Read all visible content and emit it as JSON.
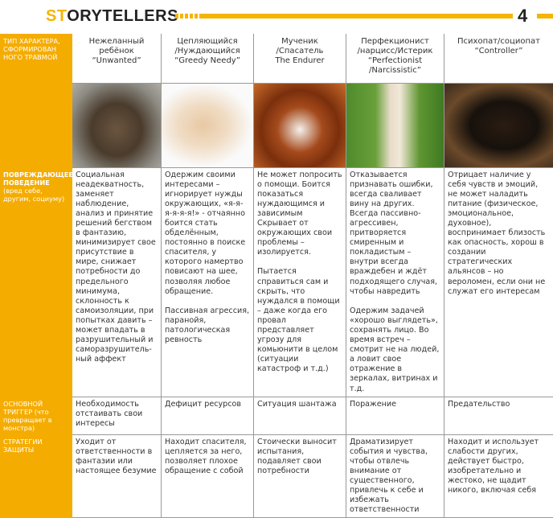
{
  "header": {
    "logo": "STORYTELLERS",
    "page_number": "4",
    "accent": "#f5b400"
  },
  "columns": [
    {
      "title": "Нежеланный\nребёнок\n“Unwanted”",
      "photo": "scruffy-mongrel-dog"
    },
    {
      "title": "Цепляющийся\n/Нуждающийся\n“Greedy Needy”",
      "photo": "chihuahua-puppy"
    },
    {
      "title": "Мученик\n/Спасатель\nThe Endurer",
      "photo": "saint-bernard-dog"
    },
    {
      "title": "Перфекционист\n/нарцисс/Истерик\n“Perfectionist\n/Narcissistic”",
      "photo": "afghan-hound"
    },
    {
      "title": "Психопат/социопат\n“Controller”",
      "photo": "rottweiler"
    }
  ],
  "rows": {
    "type_label": "ТИП ХАРАКТЕРА, СФОРМИРОВАН НОГО ТРАВМОЙ",
    "behavior": {
      "label_bold": "ПОВРЕЖДАЮЩЕЕ ПОВЕДЕНИЕ",
      "label_rest": " (вред себе, другим, социуму)",
      "cells": [
        "Социальная неадекватность, заменяет наблюдение, анализ и принятие решений бегством в фантазию, минимизирует свое присутствие в мире, снижает потребности до предельного минимума, склонность к самоизоляции, при попытках давить – может впадать в разрушительный и саморазрушитель-ный аффект",
        "Одержим своими интересами – игнорирует нужды окружающих, «я-я-я-я-я-я!» - отчаянно боится стать обделённым, постоянно в поиске спасителя, у которого намертво повисают на шее, позволяя любое обращение.\n\nПассивная агрессия, паранойя, патологическая ревность",
        "Не может попросить о помощи. Боится показаться нуждающимся и зависимым Скрывает от окружающих свои проблемы – изолируется.\n\nПытается справиться сам и скрыть, что нуждался в помощи – даже когда его провал представляет угрозу для комьюнити в целом (ситуации катастроф и т.д.)",
        "Отказывается признавать ошибки, всегда сваливает вину на других. Всегда пассивно-агрессивен, притворяется смиренным и покладистым – внутри всегда враждебен и ждёт подходящего случая, чтобы навредить\n\nОдержим задачей «хорошо выглядеть», сохранять лицо. Во время встреч – смотрит не на людей, а ловит свое отражение в зеркалах, витринах и т.д.",
        "Отрицает наличие у себя чувств и эмоций, не может наладить питание (физическое, эмоциональное, духовное), воспринимает близость как опасность, хорош в создании стратегических альянсов – но вероломен, если они не служат его интересам"
      ]
    },
    "trigger": {
      "label_bold": "ОСНОВНОЙ ТРИГГЕР",
      "label_rest": " (что превращает в монстра)",
      "cells": [
        "Необходимость отстаивать свои интересы",
        "Дефицит ресурсов",
        "Ситуация шантажа",
        "Поражение",
        "Предательство"
      ]
    },
    "strategy": {
      "label_bold": "СТРАТЕГИИ ЗАЩИТЫ",
      "label_rest": "",
      "cells": [
        "Уходит от ответственности в фантазии или настоящее безумие",
        "Находит спасителя, цепляется за него, позволяет плохое обращение с собой",
        "Стоически выносит испытания, подавляет свои потребности",
        "Драматизирует события и чувства, чтобы отвлечь внимание от существенного, привлечь к себе и избежать ответственности",
        "Находит и использует слабости других, действует быстро, изобретательно и жестоко, не щадит никого, включая себя"
      ]
    }
  }
}
